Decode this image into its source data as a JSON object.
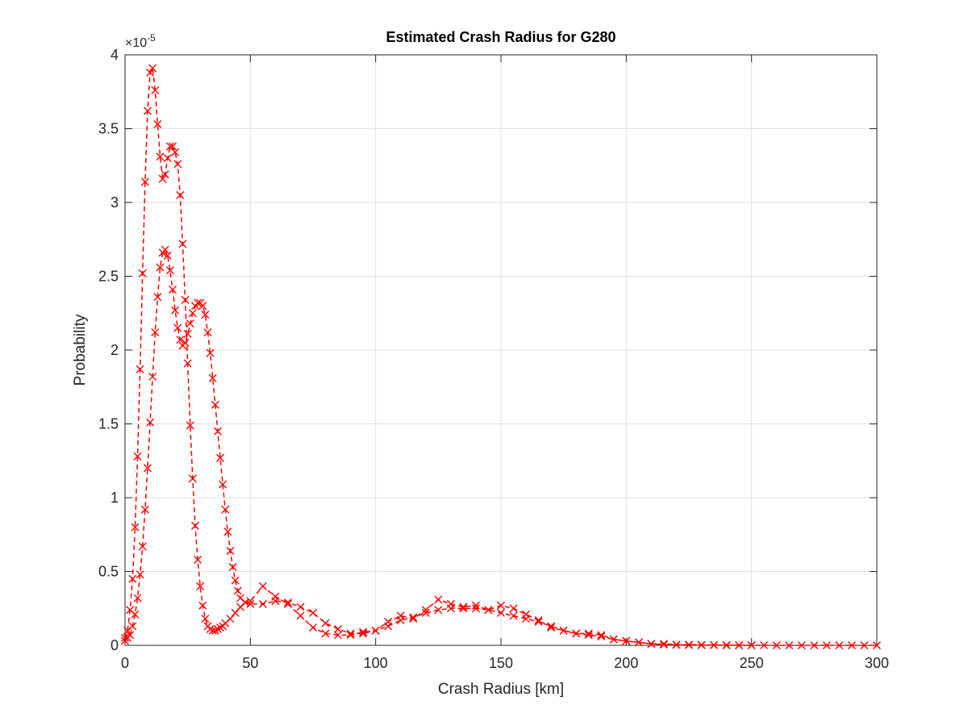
{
  "chart_data": {
    "type": "line",
    "title": "Estimated Crash Radius for G280",
    "xlabel": "Crash Radius [km]",
    "ylabel": "Probability",
    "exponent_label": "×10",
    "exponent_power": "-5",
    "xlim": [
      0,
      300
    ],
    "ylim": [
      0,
      4
    ],
    "y_scale_factor": "1e-5",
    "xticks": [
      0,
      50,
      100,
      150,
      200,
      250,
      300
    ],
    "yticks": [
      0,
      0.5,
      1,
      1.5,
      2,
      2.5,
      3,
      3.5,
      4
    ],
    "xtick_labels": [
      "0",
      "50",
      "100",
      "150",
      "200",
      "250",
      "300"
    ],
    "ytick_labels": [
      "0",
      "0.5",
      "1",
      "1.5",
      "2",
      "2.5",
      "3",
      "3.5",
      "4"
    ],
    "grid": true,
    "line_style": "dashed",
    "marker": "x",
    "color": "#ff0000",
    "series": [
      {
        "x": [
          0,
          1,
          2,
          3,
          4,
          5,
          6,
          7,
          8,
          9,
          10,
          11,
          12,
          13,
          14,
          15,
          16,
          17,
          18,
          19,
          20,
          21,
          22,
          23,
          24,
          25,
          26,
          27,
          28,
          29,
          30,
          31,
          32,
          33,
          34,
          35,
          36,
          37,
          38,
          39,
          40,
          42,
          44,
          46,
          48,
          50,
          55,
          60,
          65,
          70,
          75,
          80,
          85,
          90,
          95,
          100,
          105,
          110,
          115,
          120,
          125,
          130,
          135,
          140,
          145,
          150,
          155,
          160,
          165,
          170,
          175,
          180,
          185,
          190,
          195,
          200,
          205,
          210,
          215,
          220,
          225,
          230,
          235,
          240,
          245,
          250,
          255,
          260,
          265,
          270,
          275,
          280,
          285,
          290,
          295,
          300
        ],
        "values": [
          0.05,
          0.1,
          0.24,
          0.45,
          0.8,
          1.28,
          1.87,
          2.52,
          3.14,
          3.62,
          3.88,
          3.91,
          3.76,
          3.53,
          3.31,
          3.16,
          3.19,
          3.3,
          3.38,
          3.38,
          3.34,
          3.26,
          3.05,
          2.72,
          2.34,
          1.91,
          1.49,
          1.13,
          0.81,
          0.58,
          0.4,
          0.27,
          0.18,
          0.13,
          0.11,
          0.1,
          0.1,
          0.11,
          0.12,
          0.13,
          0.15,
          0.18,
          0.22,
          0.26,
          0.29,
          0.3,
          0.4,
          0.33,
          0.28,
          0.2,
          0.12,
          0.08,
          0.07,
          0.07,
          0.09,
          0.1,
          0.16,
          0.2,
          0.18,
          0.24,
          0.31,
          0.28,
          0.26,
          0.27,
          0.24,
          0.27,
          0.25,
          0.21,
          0.17,
          0.12,
          0.1,
          0.08,
          0.08,
          0.07,
          0.04,
          0.03,
          0.02,
          0.01,
          0.01,
          0.005,
          0.005,
          0.003,
          0.002,
          0.002,
          0.001,
          0.001,
          0.001,
          0,
          0,
          0,
          0,
          0,
          0,
          0,
          0,
          0
        ]
      },
      {
        "x": [
          0,
          1,
          2,
          3,
          4,
          5,
          6,
          7,
          8,
          9,
          10,
          11,
          12,
          13,
          14,
          15,
          16,
          17,
          18,
          19,
          20,
          21,
          22,
          23,
          24,
          25,
          26,
          27,
          28,
          29,
          30,
          31,
          32,
          33,
          34,
          35,
          36,
          37,
          38,
          39,
          40,
          41,
          42,
          43,
          44,
          45,
          46,
          48,
          50,
          55,
          60,
          65,
          70,
          75,
          80,
          85,
          90,
          95,
          100,
          105,
          110,
          115,
          120,
          125,
          130,
          135,
          140,
          145,
          150,
          155,
          160,
          165,
          170,
          175,
          180,
          185,
          190,
          195,
          200,
          205,
          210,
          215,
          220,
          225,
          230,
          235,
          240,
          245,
          250
        ],
        "values": [
          0.03,
          0.05,
          0.07,
          0.13,
          0.21,
          0.32,
          0.48,
          0.67,
          0.92,
          1.2,
          1.51,
          1.82,
          2.12,
          2.36,
          2.56,
          2.66,
          2.68,
          2.64,
          2.54,
          2.41,
          2.27,
          2.15,
          2.07,
          2.03,
          2.05,
          2.11,
          2.18,
          2.25,
          2.3,
          2.32,
          2.32,
          2.3,
          2.24,
          2.12,
          1.98,
          1.81,
          1.63,
          1.45,
          1.27,
          1.09,
          0.92,
          0.77,
          0.64,
          0.53,
          0.44,
          0.37,
          0.32,
          0.29,
          0.28,
          0.28,
          0.3,
          0.29,
          0.26,
          0.22,
          0.15,
          0.11,
          0.08,
          0.08,
          0.1,
          0.13,
          0.17,
          0.19,
          0.22,
          0.24,
          0.25,
          0.25,
          0.25,
          0.24,
          0.22,
          0.2,
          0.18,
          0.16,
          0.13,
          0.1,
          0.08,
          0.07,
          0.06,
          0.04,
          0.03,
          0.02,
          0.01,
          0.005,
          0.003,
          0.002,
          0.001,
          0.001,
          0,
          0,
          0
        ]
      }
    ]
  }
}
